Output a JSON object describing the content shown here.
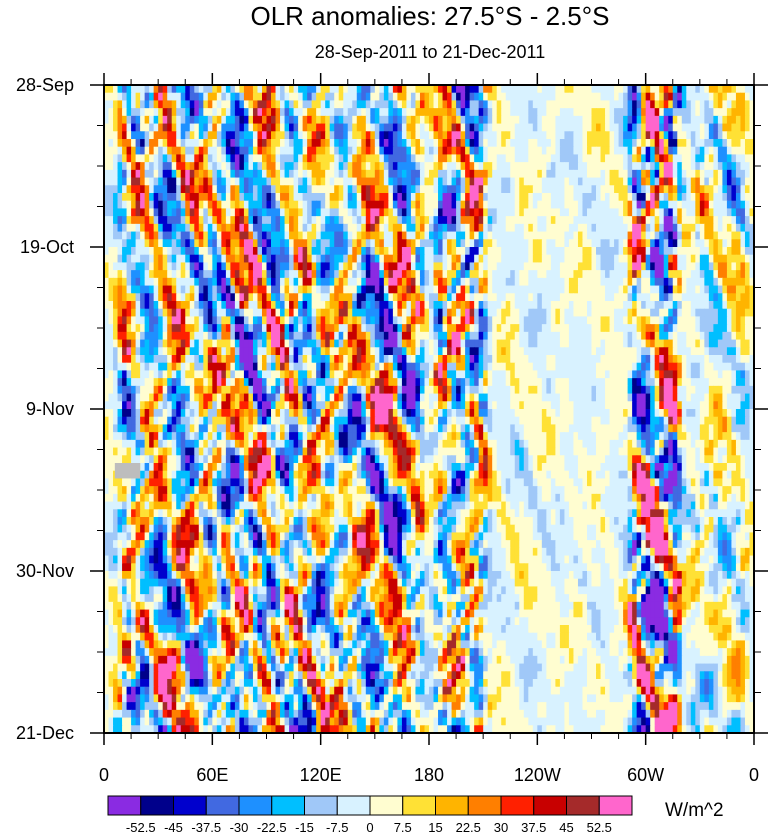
{
  "chart_data": {
    "type": "heatmap",
    "title": "OLR anomalies: 27.5°S - 2.5°S",
    "subtitle": "28-Sep-2011 to 21-Dec-2011",
    "x_ticks": [
      "0",
      "60E",
      "120E",
      "180",
      "120W",
      "60W",
      "0"
    ],
    "x_tick_values": [
      0,
      60,
      120,
      180,
      240,
      300,
      360
    ],
    "y_ticks": [
      "28-Sep",
      "19-Oct",
      "9-Nov",
      "30-Nov",
      "21-Dec"
    ],
    "y_tick_days": [
      0,
      21,
      42,
      63,
      84
    ],
    "xlim": [
      0,
      360
    ],
    "ylim_days": [
      0,
      84
    ],
    "colorbar": {
      "unit": "W/m^2",
      "labels": [
        "-52.5",
        "-45",
        "-37.5",
        "-30",
        "-22.5",
        "-15",
        "-7.5",
        "0",
        "7.5",
        "15",
        "22.5",
        "30",
        "37.5",
        "45",
        "52.5"
      ],
      "levels": [
        -52.5,
        -45,
        -37.5,
        -30,
        -22.5,
        -15,
        -7.5,
        0,
        7.5,
        15,
        22.5,
        30,
        37.5,
        45,
        52.5
      ],
      "colors": [
        "#8a2be2",
        "#00008b",
        "#0000cd",
        "#4169e1",
        "#1e90ff",
        "#00bfff",
        "#a0c8f8",
        "#d8f2ff",
        "#fffdd0",
        "#ffe135",
        "#ffb400",
        "#ff7f00",
        "#ff2000",
        "#c80000",
        "#a52a2a",
        "#ff66cc"
      ]
    },
    "bands": [
      {
        "lon0": 5,
        "lon1": 180,
        "amp": 1.0
      },
      {
        "lon0": 180,
        "lon1": 215,
        "amp": 1.25
      },
      {
        "lon0": 215,
        "lon1": 288,
        "amp": 0.18
      },
      {
        "lon0": 288,
        "lon1": 322,
        "amp": 1.5
      },
      {
        "lon0": 322,
        "lon1": 360,
        "amp": 0.45
      }
    ],
    "missing_region": {
      "lon": [
        6,
        20
      ],
      "day": [
        49,
        51
      ]
    }
  }
}
